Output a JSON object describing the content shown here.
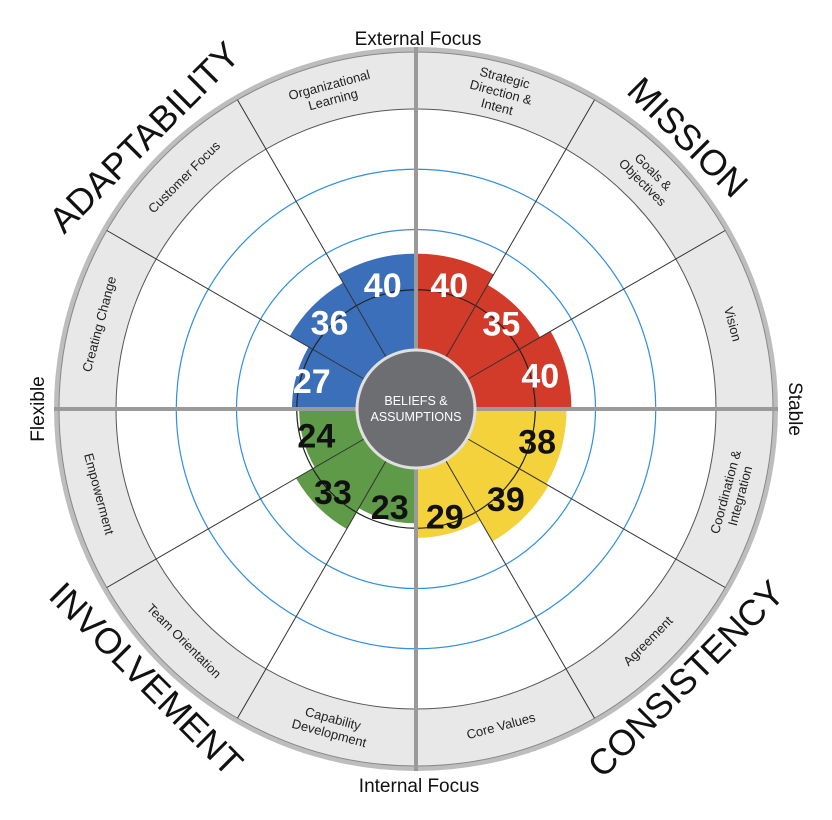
{
  "chart_data": {
    "type": "polar-bar",
    "axis_labels": {
      "top": "External Focus",
      "bottom": "Internal Focus",
      "left": "Flexible",
      "right": "Stable"
    },
    "center": {
      "line1": "BELIEFS &",
      "line2": "ASSUMPTIONS"
    },
    "traits": [
      {
        "name": "MISSION",
        "color": "#d23a2a",
        "label_color": "#ffffff",
        "quadrant": "top-right"
      },
      {
        "name": "CONSISTENCY",
        "color": "#f3d23c",
        "label_color": "#111111",
        "quadrant": "bottom-right"
      },
      {
        "name": "INVOLVEMENT",
        "color": "#5e9a47",
        "label_color": "#111111",
        "quadrant": "bottom-left"
      },
      {
        "name": "ADAPTABILITY",
        "color": "#3b6fba",
        "label_color": "#ffffff",
        "quadrant": "top-left"
      }
    ],
    "segments": [
      {
        "trait": "MISSION",
        "label": [
          "Strategic",
          "Direction &",
          "Intent"
        ],
        "value": 40
      },
      {
        "trait": "MISSION",
        "label": [
          "Goals &",
          "Objectives"
        ],
        "value": 35
      },
      {
        "trait": "MISSION",
        "label": [
          "Vision"
        ],
        "value": 40
      },
      {
        "trait": "CONSISTENCY",
        "label": [
          "Coordination &",
          "Integration"
        ],
        "value": 38
      },
      {
        "trait": "CONSISTENCY",
        "label": [
          "Agreement"
        ],
        "value": 39
      },
      {
        "trait": "CONSISTENCY",
        "label": [
          "Core Values"
        ],
        "value": 29
      },
      {
        "trait": "INVOLVEMENT",
        "label": [
          "Capability",
          "Development"
        ],
        "value": 23
      },
      {
        "trait": "INVOLVEMENT",
        "label": [
          "Team Orientation"
        ],
        "value": 33
      },
      {
        "trait": "INVOLVEMENT",
        "label": [
          "Empowerment"
        ],
        "value": 24
      },
      {
        "trait": "ADAPTABILITY",
        "label": [
          "Creating Change"
        ],
        "value": 27
      },
      {
        "trait": "ADAPTABILITY",
        "label": [
          "Customer Focus"
        ],
        "value": 36
      },
      {
        "trait": "ADAPTABILITY",
        "label": [
          "Organizational",
          "Learning"
        ],
        "value": 40
      }
    ],
    "value_range": [
      0,
      100
    ],
    "grid_rings": [
      25,
      50,
      75,
      100
    ]
  }
}
